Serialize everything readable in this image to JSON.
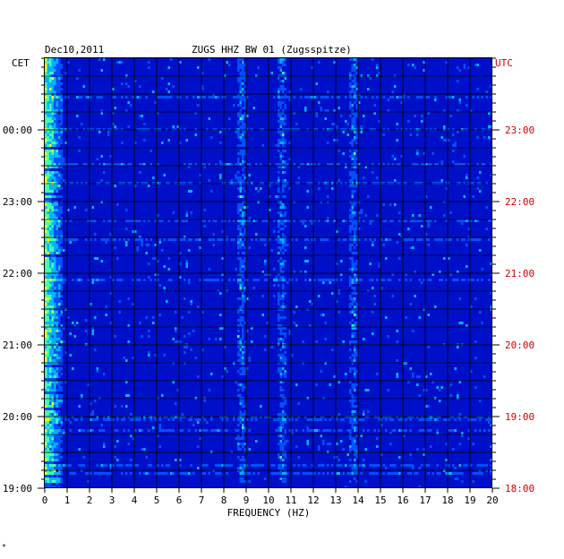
{
  "header": {
    "date": "Dec10,2011",
    "station": "ZUGS HHZ BW 01 (Zugsspitze)",
    "left_tz": "CET",
    "right_tz": "UTC"
  },
  "footnote": "*",
  "colors": {
    "background": "#0010c8",
    "grid": "#000000",
    "utc_text": "#d40000",
    "text": "#000000"
  },
  "chart_data": {
    "type": "heatmap",
    "title": "ZUGS HHZ BW 01 (Zugsspitze)",
    "xlabel": "FREQUENCY (HZ)",
    "ylabel": "",
    "xlim": [
      0,
      20
    ],
    "x_ticks": [
      "0",
      "1",
      "2",
      "3",
      "4",
      "5",
      "6",
      "7",
      "8",
      "9",
      "10",
      "11",
      "12",
      "13",
      "14",
      "15",
      "16",
      "17",
      "18",
      "19",
      "20"
    ],
    "cet_ticks": [
      "00:00",
      "23:00",
      "22:00",
      "21:00",
      "20:00",
      "19:00"
    ],
    "utc_ticks": [
      "23:00",
      "22:00",
      "21:00",
      "20:00",
      "19:00",
      "18:00"
    ],
    "colormap": [
      "#0010c8",
      "#0050ff",
      "#00b4ff",
      "#40ffb0",
      "#ffff00",
      "#ff8000",
      "#c80000"
    ],
    "prominent_bands_hz": [
      0.3,
      8.8,
      10.6,
      13.8
    ]
  }
}
